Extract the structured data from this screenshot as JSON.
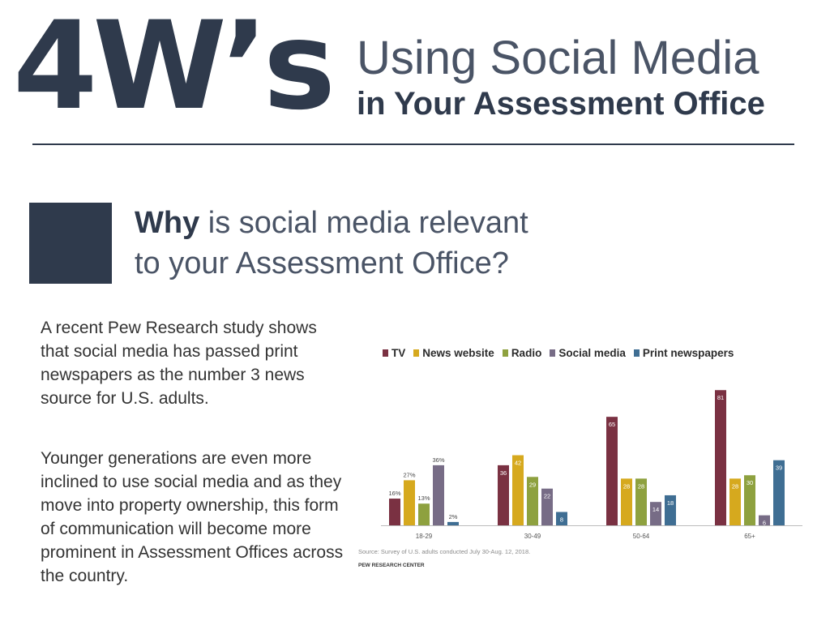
{
  "header": {
    "big_title": "4W’s",
    "title_line1": "Using Social Media",
    "title_line2": "in Your Assessment Office"
  },
  "section": {
    "heading_bold": "Why",
    "heading_rest_1": " is social media relevant",
    "heading_rest_2": "to your Assessment Office?"
  },
  "paragraphs": [
    "A recent Pew Research study shows that social media has passed print newspapers as the number 3 news source for U.S. adults.",
    "Younger generations are even more inclined to use social media and as they move into property ownership, this form of communication will become more prominent in Assessment Offices across the country."
  ],
  "colors": {
    "navy": "#2f3a4c",
    "tv": "#7a3142",
    "news_website": "#d6a91e",
    "radio": "#8ea13f",
    "social_media": "#776c86",
    "print_newspapers": "#3f6e93"
  },
  "chart_data": {
    "type": "bar",
    "categories": [
      "18-29",
      "30-49",
      "50-64",
      "65+"
    ],
    "series": [
      {
        "name": "TV",
        "values": [
          16,
          36,
          65,
          81
        ],
        "labels": [
          "16%",
          "36",
          "65",
          "81"
        ]
      },
      {
        "name": "News website",
        "values": [
          27,
          42,
          28,
          28
        ],
        "labels": [
          "27%",
          "42",
          "28",
          "28"
        ]
      },
      {
        "name": "Radio",
        "values": [
          13,
          29,
          28,
          30
        ],
        "labels": [
          "13%",
          "29",
          "28",
          "30"
        ]
      },
      {
        "name": "Social media",
        "values": [
          36,
          22,
          14,
          6
        ],
        "labels": [
          "36%",
          "22",
          "14",
          "6"
        ]
      },
      {
        "name": "Print newspapers",
        "values": [
          2,
          8,
          18,
          39
        ],
        "labels": [
          "2%",
          "8",
          "18",
          "39"
        ]
      }
    ],
    "ylim": [
      0,
      85
    ],
    "grid": false,
    "legend_position": "top",
    "source": "Source: Survey of U.S. adults conducted July 30-Aug. 12, 2018.",
    "credit": "PEW RESEARCH CENTER"
  }
}
